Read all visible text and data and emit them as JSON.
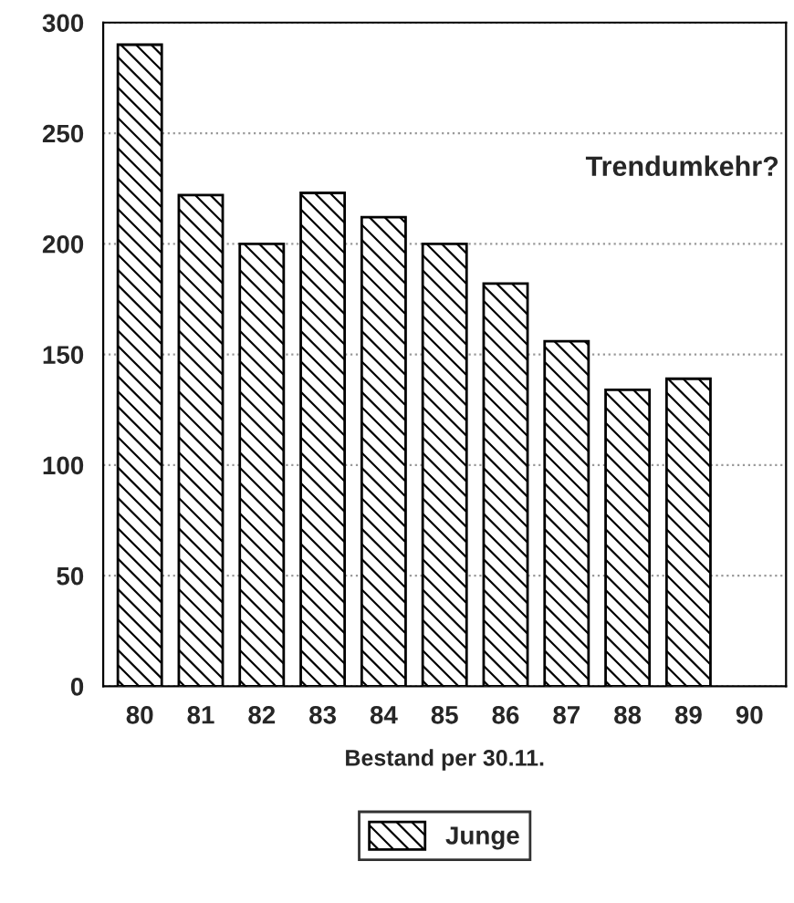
{
  "chart_data": {
    "type": "bar",
    "xlabel": "Bestand per 30.11.",
    "categories": [
      "80",
      "81",
      "82",
      "83",
      "84",
      "85",
      "86",
      "87",
      "88",
      "89",
      "90"
    ],
    "series": [
      {
        "name": "Junge",
        "color": "#000000",
        "values": [
          290,
          222,
          200,
          223,
          212,
          200,
          182,
          156,
          134,
          139,
          null
        ]
      }
    ],
    "ylim": [
      0,
      300
    ],
    "yticks": [
      0,
      50,
      100,
      150,
      200,
      250,
      300
    ],
    "grid": "y",
    "legend": "bottom",
    "annotations": [
      "Trendumkehr?"
    ]
  }
}
